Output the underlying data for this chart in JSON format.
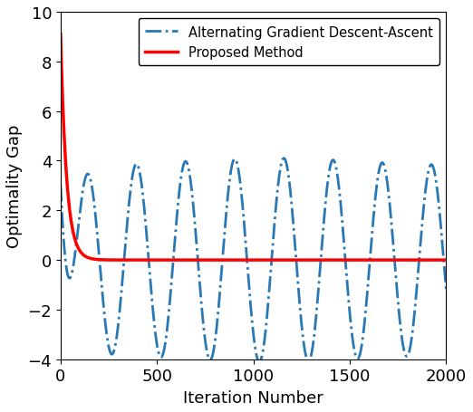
{
  "title": "",
  "xlabel": "Iteration Number",
  "ylabel": "Optimality Gap",
  "xlim": [
    0,
    2000
  ],
  "ylim": [
    -4,
    10
  ],
  "xticks": [
    0,
    500,
    1000,
    1500,
    2000
  ],
  "yticks": [
    -4,
    -2,
    0,
    2,
    4,
    6,
    8,
    10
  ],
  "n_points": 4001,
  "agda_color": "#2878b5",
  "proposed_color": "#ff0000",
  "agda_linewidth": 2.0,
  "proposed_linewidth": 2.5,
  "agda_linestyle": "-.",
  "proposed_linestyle": "-",
  "legend_labels": [
    "Alternating Gradient Descent-Ascent",
    "Proposed Method"
  ],
  "proposed_start": 9.1,
  "proposed_decay": 0.032,
  "background_color": "#ffffff",
  "font_size": 13,
  "osc_period": 255,
  "osc_phase": 4.45,
  "amp_mid": 3.8,
  "amp_end": 3.0
}
